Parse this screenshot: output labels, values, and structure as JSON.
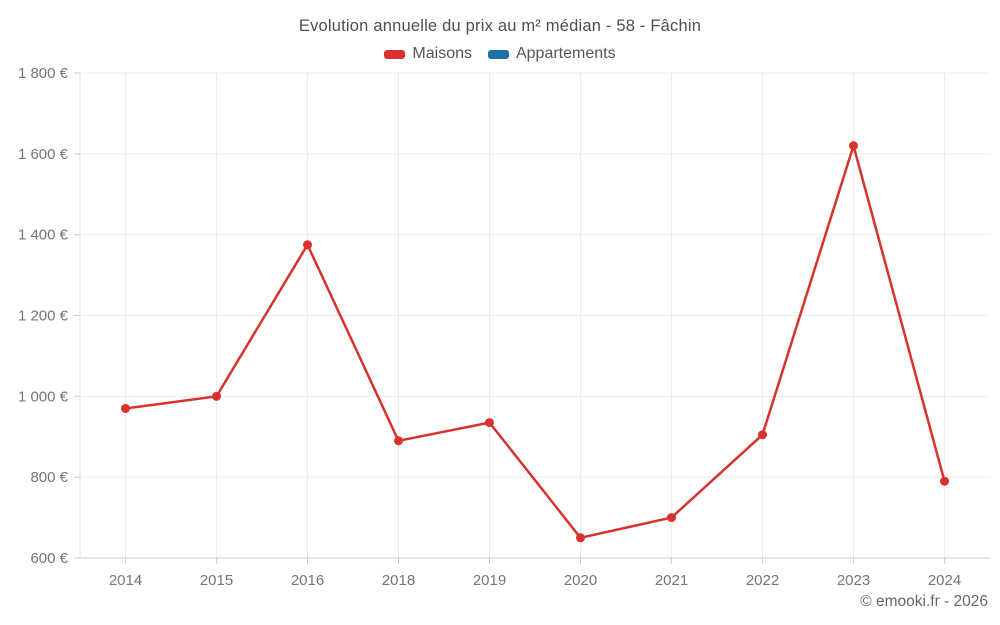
{
  "title": "Evolution annuelle du prix au m² médian - 58 - Fâchin",
  "footer": "© emooki.fr - 2026",
  "legend": [
    {
      "label": "Maisons",
      "color": "#d7322c"
    },
    {
      "label": "Appartements",
      "color": "#1d71a8"
    }
  ],
  "colors": {
    "maisons": "#d7322c",
    "appartements": "#1d71a8",
    "gridline": "#ededed",
    "axis": "#cccccc",
    "tick_text": "#757575"
  },
  "chart_data": {
    "type": "line",
    "title": "Evolution annuelle du prix au m² médian - 58 - Fâchin",
    "categories": [
      "2014",
      "2015",
      "2016",
      "2018",
      "2019",
      "2020",
      "2021",
      "2022",
      "2023",
      "2024"
    ],
    "series": [
      {
        "name": "Maisons",
        "color": "#d7322c",
        "values": [
          970,
          1000,
          1375,
          890,
          935,
          650,
          700,
          905,
          1620,
          790
        ]
      },
      {
        "name": "Appartements",
        "color": "#1d71a8",
        "values": [
          null,
          null,
          null,
          null,
          null,
          null,
          null,
          null,
          null,
          null
        ]
      }
    ],
    "xlabel": "",
    "ylabel": "",
    "ylim": [
      600,
      1800
    ],
    "y_ticks": [
      600,
      800,
      1000,
      1200,
      1400,
      1600,
      1800
    ],
    "y_tick_suffix": " €",
    "grid": true,
    "legend_position": "top"
  }
}
